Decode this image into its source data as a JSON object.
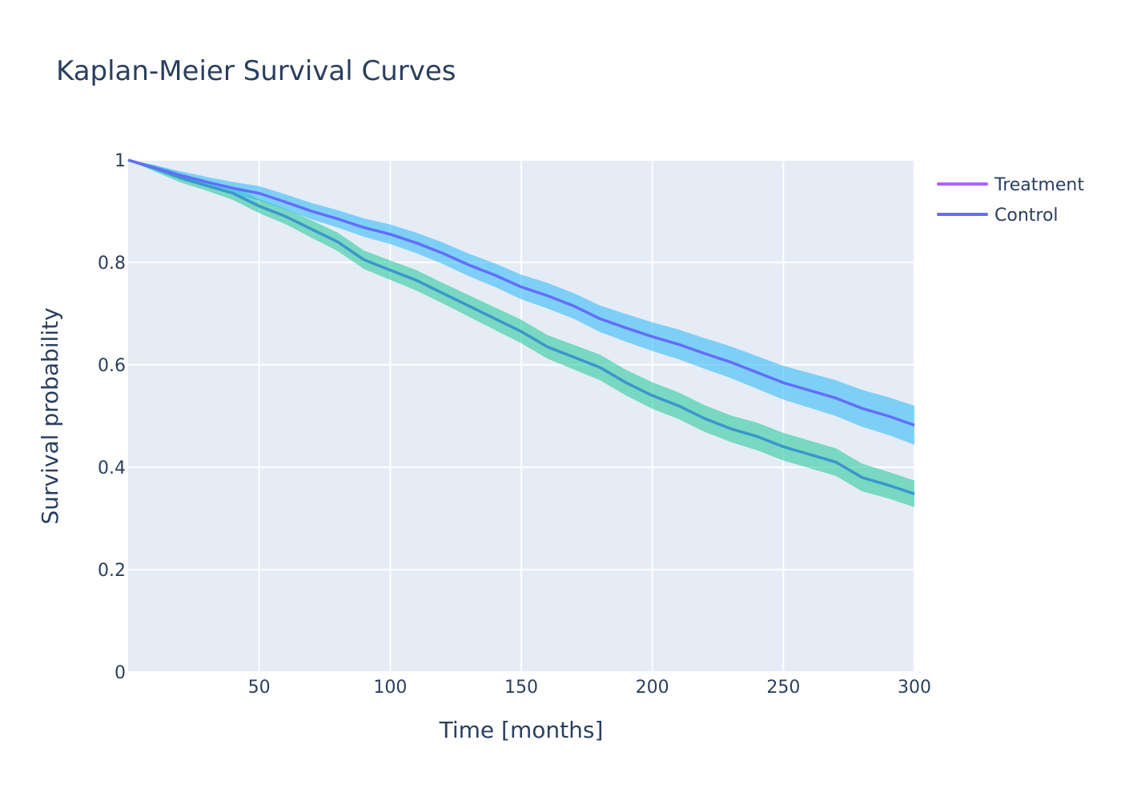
{
  "chart_data": {
    "type": "line",
    "title": "Kaplan-Meier Survival Curves",
    "xlabel": "Time [months]",
    "ylabel": "Survival probability",
    "xlim": [
      0,
      300
    ],
    "ylim": [
      0,
      1
    ],
    "x_ticks": [
      50,
      100,
      150,
      200,
      250,
      300
    ],
    "x_tick_labels": [
      "50",
      "100",
      "150",
      "200",
      "250",
      "300"
    ],
    "y_ticks": [
      0,
      0.2,
      0.4,
      0.6,
      0.8,
      1
    ],
    "y_tick_labels": [
      "0",
      "0.2",
      "0.4",
      "0.6",
      "0.8",
      "1"
    ],
    "grid": true,
    "legend_position": "top-right",
    "plot_background": "#e5ecf6",
    "series": [
      {
        "name": "Treatment",
        "line_color": "#3b96cc",
        "legend_color": "#ab63fa",
        "band_color": "#2ecc9f",
        "x": [
          0,
          10,
          20,
          30,
          40,
          50,
          60,
          70,
          80,
          90,
          100,
          110,
          120,
          130,
          140,
          150,
          160,
          170,
          180,
          190,
          200,
          210,
          220,
          230,
          240,
          250,
          260,
          270,
          280,
          290,
          300
        ],
        "y": [
          1.0,
          0.984,
          0.965,
          0.95,
          0.935,
          0.91,
          0.89,
          0.865,
          0.84,
          0.805,
          0.785,
          0.765,
          0.74,
          0.715,
          0.69,
          0.665,
          0.635,
          0.615,
          0.595,
          0.565,
          0.54,
          0.52,
          0.495,
          0.475,
          0.46,
          0.44,
          0.425,
          0.41,
          0.38,
          0.365,
          0.348
        ],
        "ci_lower": [
          1.0,
          0.978,
          0.956,
          0.94,
          0.922,
          0.896,
          0.875,
          0.848,
          0.822,
          0.787,
          0.766,
          0.745,
          0.72,
          0.694,
          0.668,
          0.642,
          0.612,
          0.591,
          0.57,
          0.54,
          0.514,
          0.494,
          0.469,
          0.449,
          0.433,
          0.413,
          0.398,
          0.383,
          0.353,
          0.339,
          0.322
        ],
        "ci_upper": [
          1.0,
          0.99,
          0.974,
          0.96,
          0.948,
          0.924,
          0.905,
          0.882,
          0.858,
          0.823,
          0.804,
          0.785,
          0.76,
          0.736,
          0.712,
          0.688,
          0.658,
          0.639,
          0.62,
          0.59,
          0.566,
          0.546,
          0.521,
          0.501,
          0.487,
          0.467,
          0.452,
          0.437,
          0.407,
          0.391,
          0.374
        ]
      },
      {
        "name": "Control",
        "line_color": "#636efa",
        "legend_color": "#636efa",
        "band_color": "#38bdf8",
        "x": [
          0,
          10,
          20,
          30,
          40,
          50,
          60,
          70,
          80,
          90,
          100,
          110,
          120,
          130,
          140,
          150,
          160,
          170,
          180,
          190,
          200,
          210,
          220,
          230,
          240,
          250,
          260,
          270,
          280,
          290,
          300
        ],
        "y": [
          1.0,
          0.985,
          0.97,
          0.957,
          0.945,
          0.935,
          0.918,
          0.9,
          0.885,
          0.868,
          0.855,
          0.838,
          0.818,
          0.795,
          0.775,
          0.752,
          0.735,
          0.715,
          0.69,
          0.672,
          0.655,
          0.64,
          0.622,
          0.605,
          0.585,
          0.565,
          0.55,
          0.535,
          0.515,
          0.5,
          0.482
        ],
        "ci_lower": [
          1.0,
          0.98,
          0.962,
          0.947,
          0.933,
          0.921,
          0.903,
          0.884,
          0.868,
          0.85,
          0.836,
          0.818,
          0.797,
          0.773,
          0.752,
          0.728,
          0.71,
          0.69,
          0.664,
          0.645,
          0.627,
          0.611,
          0.592,
          0.574,
          0.553,
          0.532,
          0.516,
          0.5,
          0.479,
          0.463,
          0.444
        ],
        "ci_upper": [
          1.0,
          0.99,
          0.978,
          0.967,
          0.957,
          0.949,
          0.933,
          0.916,
          0.902,
          0.886,
          0.874,
          0.858,
          0.839,
          0.817,
          0.798,
          0.776,
          0.76,
          0.74,
          0.716,
          0.699,
          0.683,
          0.669,
          0.652,
          0.636,
          0.617,
          0.598,
          0.584,
          0.57,
          0.551,
          0.537,
          0.52
        ]
      }
    ]
  }
}
